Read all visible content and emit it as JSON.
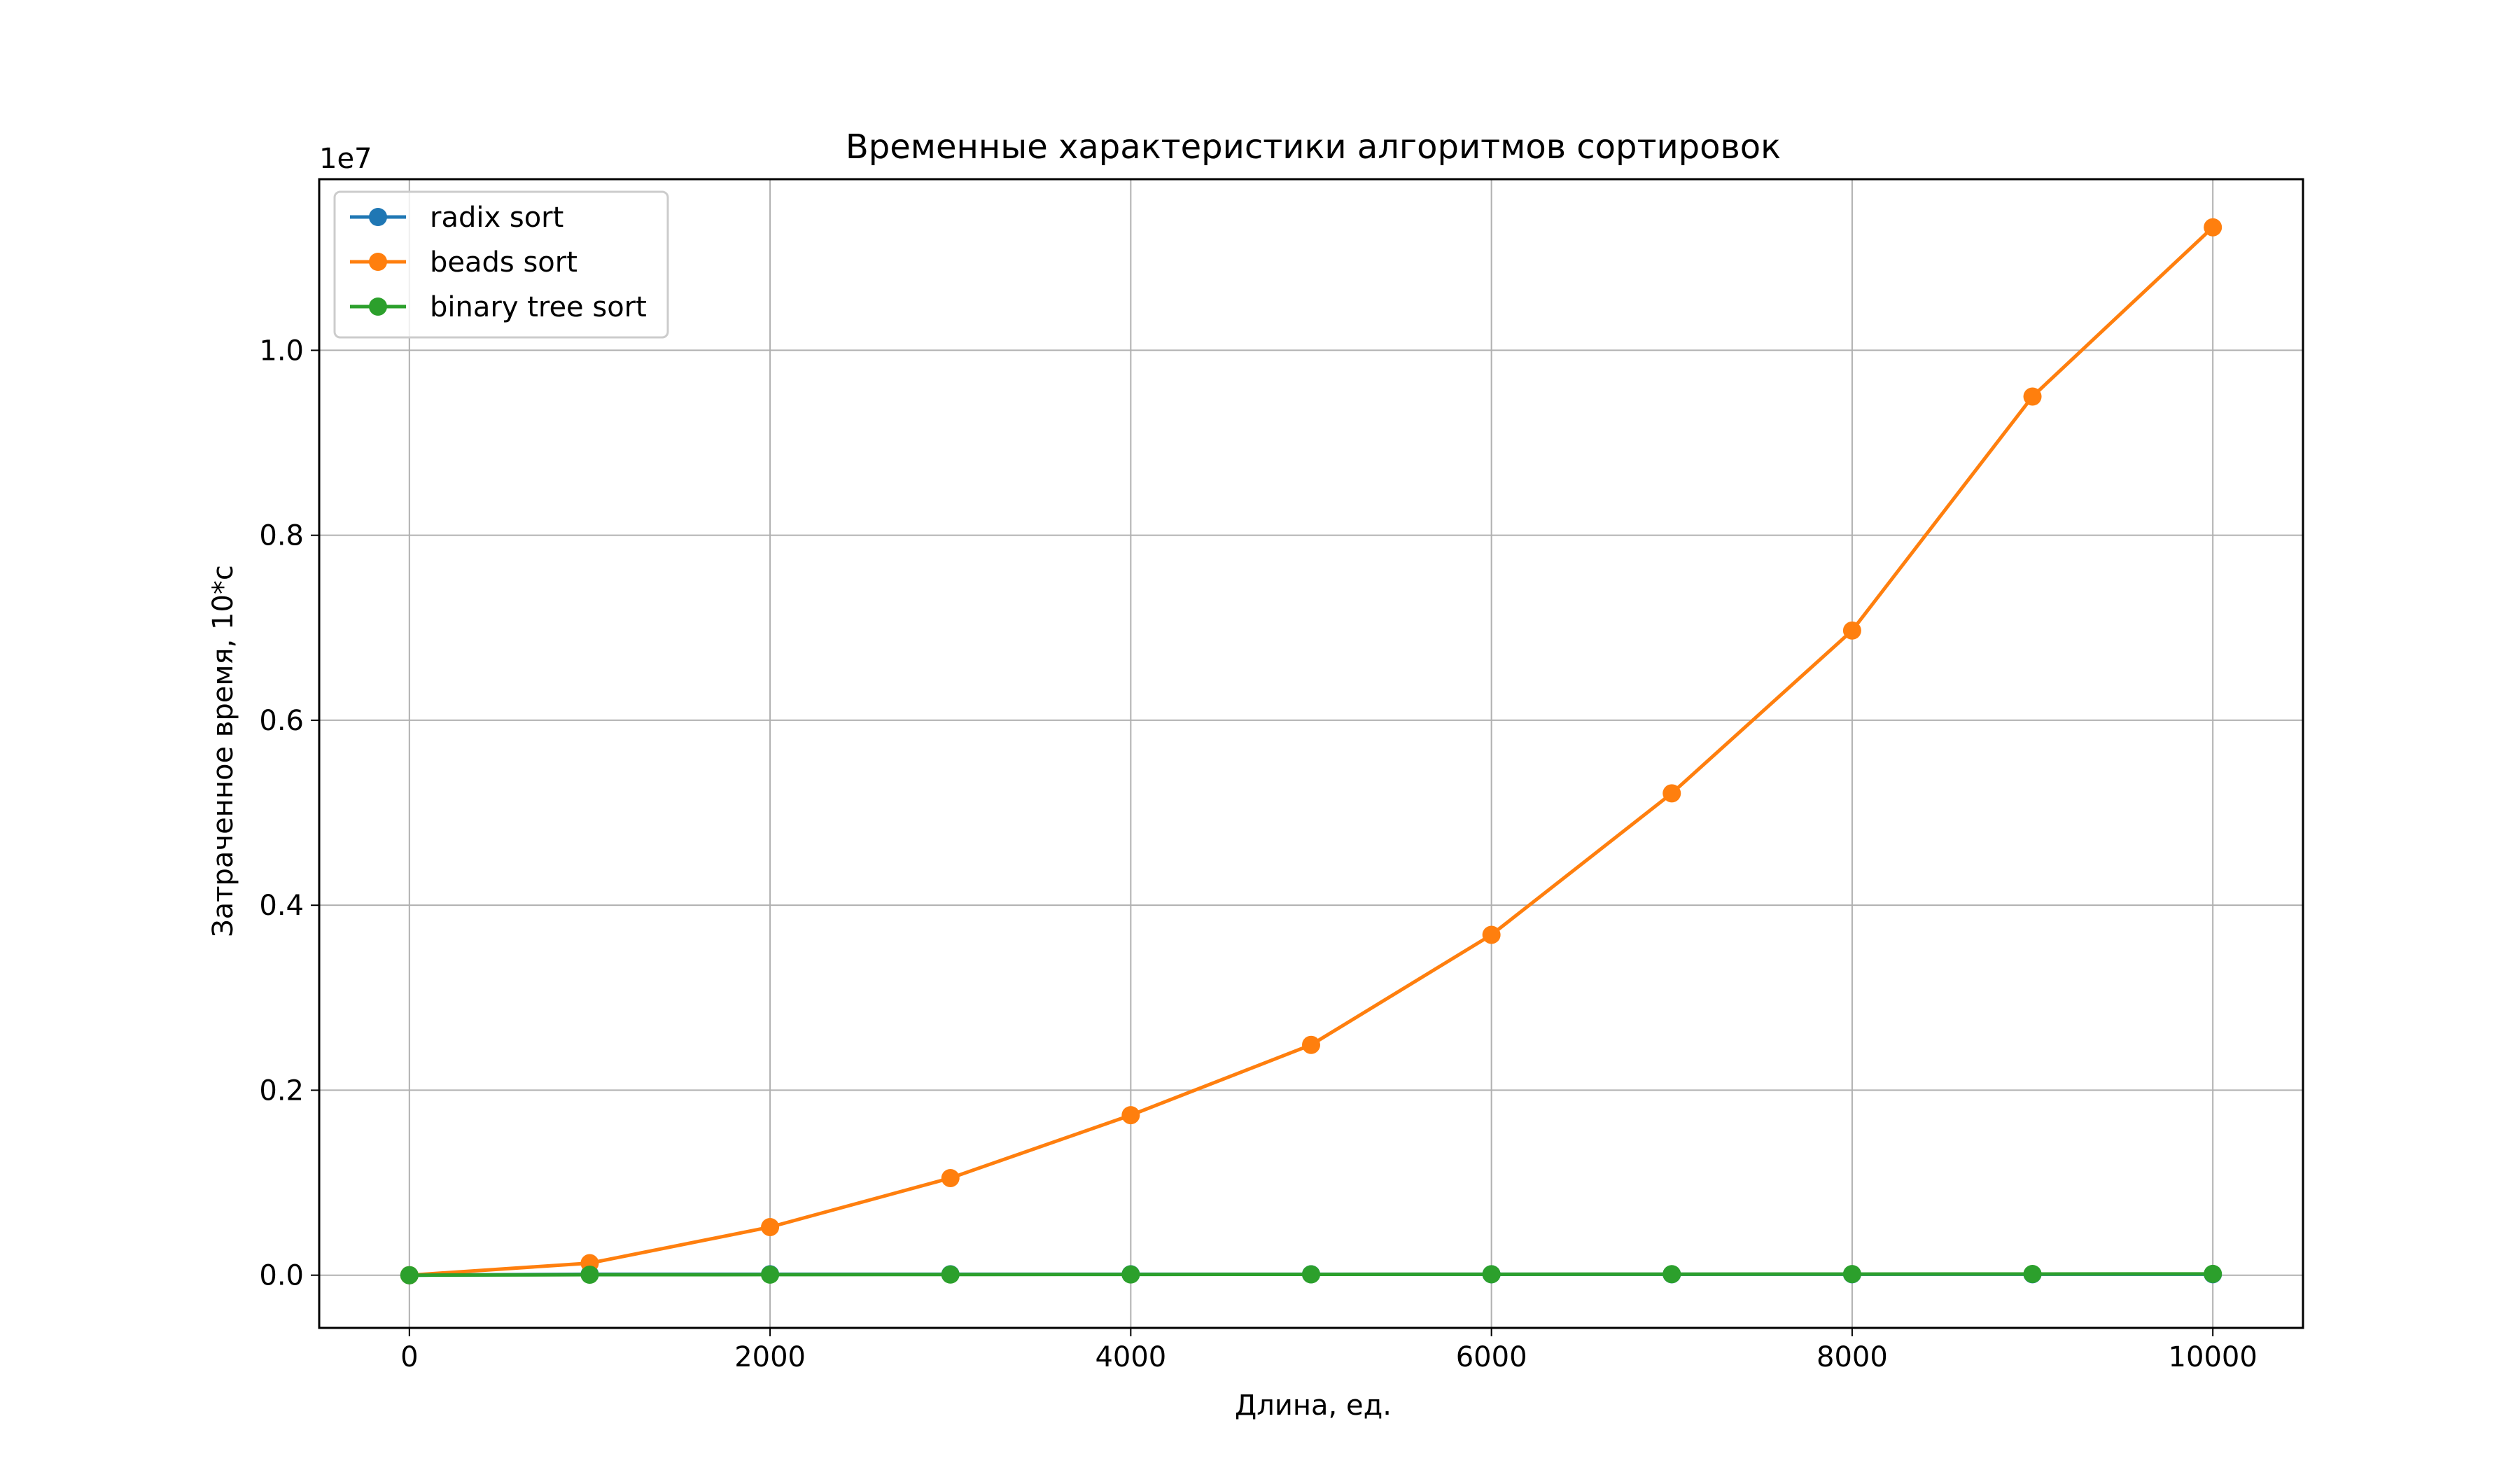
{
  "chart_data": {
    "type": "line",
    "title": "Временные характеристики алгоритмов сортировок",
    "xlabel": "Длина, ед.",
    "ylabel": "Затраченное время, 10*с",
    "y_offset_label": "1e7",
    "y_scale": 10000000,
    "xlim": [
      -500,
      10500
    ],
    "ylim": [
      -0.057,
      1.185
    ],
    "x_ticks": [
      0,
      2000,
      4000,
      6000,
      8000,
      10000
    ],
    "x_tick_labels": [
      "0",
      "2000",
      "4000",
      "6000",
      "8000",
      "10000"
    ],
    "y_ticks": [
      0.0,
      0.2,
      0.4,
      0.6,
      0.8,
      1.0
    ],
    "y_tick_labels": [
      "0.0",
      "0.2",
      "0.4",
      "0.6",
      "0.8",
      "1.0"
    ],
    "grid": true,
    "legend_position": "upper-left",
    "x": [
      0,
      1000,
      2000,
      3000,
      4000,
      5000,
      6000,
      7000,
      8000,
      9000,
      10000
    ],
    "series": [
      {
        "name": "radix sort",
        "color": "#1f77b4",
        "values": [
          0,
          0.001,
          0.001,
          0.001,
          0.001,
          0.001,
          0.001,
          0.001,
          0.001,
          0.001,
          0.001
        ]
      },
      {
        "name": "beads sort",
        "color": "#ff7f0e",
        "values": [
          0,
          0.013,
          0.052,
          0.105,
          0.173,
          0.249,
          0.368,
          0.521,
          0.697,
          0.95,
          1.133
        ]
      },
      {
        "name": "binary tree sort",
        "color": "#2ca02c",
        "values": [
          0,
          0.0005,
          0.0006,
          0.0007,
          0.0008,
          0.0009,
          0.001,
          0.0011,
          0.0012,
          0.0013,
          0.0014
        ]
      }
    ]
  }
}
